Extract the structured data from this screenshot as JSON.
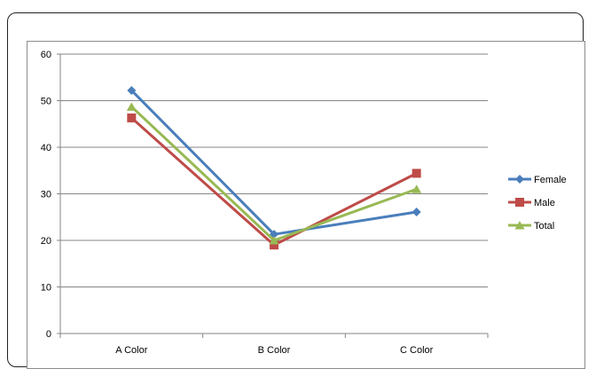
{
  "chart_data": {
    "type": "line",
    "categories": [
      "A Color",
      "B Color",
      "C Color"
    ],
    "series": [
      {
        "name": "Female",
        "values": [
          52.2,
          21.3,
          26.1
        ],
        "color": "#4a7ebb",
        "marker": "diamond"
      },
      {
        "name": "Male",
        "values": [
          46.3,
          19.0,
          34.4
        ],
        "color": "#be4b48",
        "marker": "square"
      },
      {
        "name": "Total",
        "values": [
          48.7,
          20.0,
          31.0
        ],
        "color": "#98b954",
        "marker": "triangle"
      }
    ],
    "title": "",
    "xlabel": "",
    "ylabel": "",
    "ylim": [
      0,
      60
    ],
    "yticks": [
      "0",
      "10",
      "20",
      "30",
      "40",
      "50",
      "60"
    ],
    "grid": "horizontal",
    "legend": "right"
  }
}
